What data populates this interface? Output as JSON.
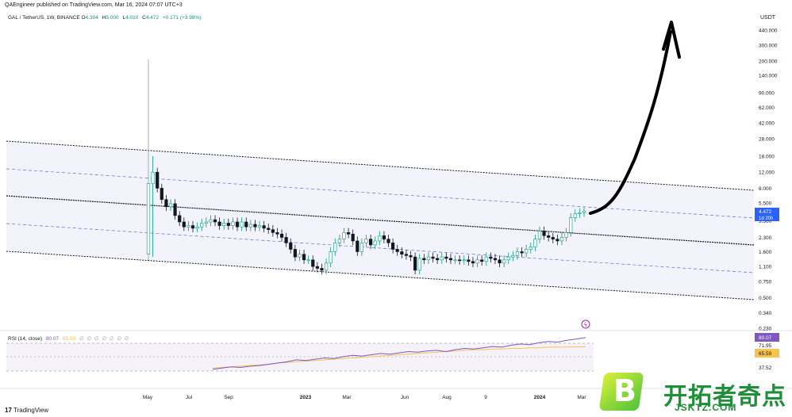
{
  "header": {
    "publisher": "QAEngineer published on TradingView.com, Mar 16, 2024 07:07 UTC+3",
    "symbol": "GAL / TetherUS, 1W, BINANCE",
    "o_label": "O",
    "o_value": "4.304",
    "h_label": "H",
    "h_value": "5.000",
    "l_label": "L",
    "l_value": "4.010",
    "c_label": "C",
    "c_value": "4.472",
    "change": "+0.171 (+3.98%)"
  },
  "currency": "USDT",
  "price_axis": {
    "ticks": [
      "440.000",
      "300.000",
      "200.000",
      "140.000",
      "90.000",
      "62.000",
      "42.000",
      "28.000",
      "18.000",
      "12.000",
      "8.000",
      "5.500",
      "3.500",
      "2.300",
      "1.600",
      "1.100",
      "0.750",
      "0.500",
      "0.340",
      "0.230"
    ],
    "last_price": "4.472",
    "countdown": "1d 20h"
  },
  "time_axis": [
    "May",
    "Jul",
    "Sep",
    "2023",
    "Mar",
    "Jun",
    "Aug",
    "9",
    "2024",
    "Mar"
  ],
  "rsi": {
    "label": "RSI (14, close)",
    "rsi_value": "80.07",
    "ma_value": "65.59",
    "dots": "∅ ∅ ∅ ∅ ∅ ∅ ∅",
    "axis_ticks": [
      "71.95",
      "37.52"
    ],
    "badge_rsi": "80.07",
    "badge_ma": "65.59"
  },
  "footer": {
    "brand": "TradingView"
  },
  "watermark": {
    "logo_letter": "B",
    "title": "开拓者奇点",
    "url": "JSKTZ.COM"
  },
  "colors": {
    "up": "#089981",
    "down": "#131722",
    "rsi": "#7e57c2",
    "rsi_ma": "#f7c34c",
    "last_price": "#2962ff"
  },
  "chart_data": {
    "type": "candlestick",
    "title": "GAL / TetherUS, 1W, BINANCE",
    "scale": "log",
    "ylabel": "USDT",
    "ylim": [
      0.2,
      500
    ],
    "x_labels": [
      "May",
      "Jul",
      "Sep",
      "2023",
      "Mar",
      "Jun",
      "Aug",
      "9",
      "2024",
      "Mar"
    ],
    "candles_close": [
      9.0,
      12.0,
      8.0,
      6.0,
      5.0,
      5.4,
      4.0,
      3.4,
      3.0,
      3.1,
      2.9,
      3.0,
      3.3,
      3.4,
      3.6,
      3.4,
      3.1,
      3.3,
      3.1,
      3.4,
      3.0,
      3.4,
      3.0,
      3.2,
      3.0,
      3.1,
      2.9,
      2.8,
      2.6,
      2.5,
      2.3,
      2.0,
      1.7,
      1.4,
      1.5,
      1.3,
      1.3,
      1.1,
      1.05,
      1.0,
      1.2,
      1.6,
      2.0,
      2.2,
      2.6,
      2.5,
      2.1,
      1.6,
      2.0,
      2.2,
      1.9,
      2.1,
      2.4,
      2.2,
      2.0,
      1.7,
      1.6,
      1.5,
      1.45,
      1.4,
      1.0,
      1.35,
      1.3,
      1.4,
      1.35,
      1.3,
      1.4,
      1.35,
      1.3,
      1.3,
      1.28,
      1.3,
      1.25,
      1.2,
      1.3,
      1.25,
      1.4,
      1.35,
      1.3,
      1.2,
      1.3,
      1.4,
      1.45,
      1.6,
      1.55,
      1.7,
      1.8,
      2.2,
      2.7,
      2.4,
      2.3,
      2.2,
      2.1,
      2.3,
      2.6,
      3.8,
      4.2,
      4.3,
      4.47
    ],
    "rsi_series": [
      30,
      32,
      34,
      33,
      35,
      36,
      38,
      40,
      42,
      45,
      44,
      46,
      48,
      47,
      50,
      52,
      51,
      53,
      55,
      54,
      56,
      58,
      57,
      59,
      60,
      58,
      61,
      63,
      62,
      64,
      66,
      65,
      68,
      70,
      69,
      72,
      74,
      73,
      76,
      78,
      80.07
    ],
    "rsi_ma_series": [
      32,
      33,
      34,
      35,
      36,
      37,
      38,
      40,
      41,
      42,
      43,
      44,
      45,
      46,
      47,
      48,
      49,
      50,
      51,
      52,
      53,
      54,
      55,
      56,
      57,
      58,
      59,
      60,
      61,
      61,
      62,
      62,
      63,
      63,
      64,
      64,
      65,
      65,
      65.3,
      65.5,
      65.59
    ],
    "channel_lines": [
      "upper",
      "middle",
      "lower"
    ],
    "annotation": "hand-drawn upward arrow"
  }
}
